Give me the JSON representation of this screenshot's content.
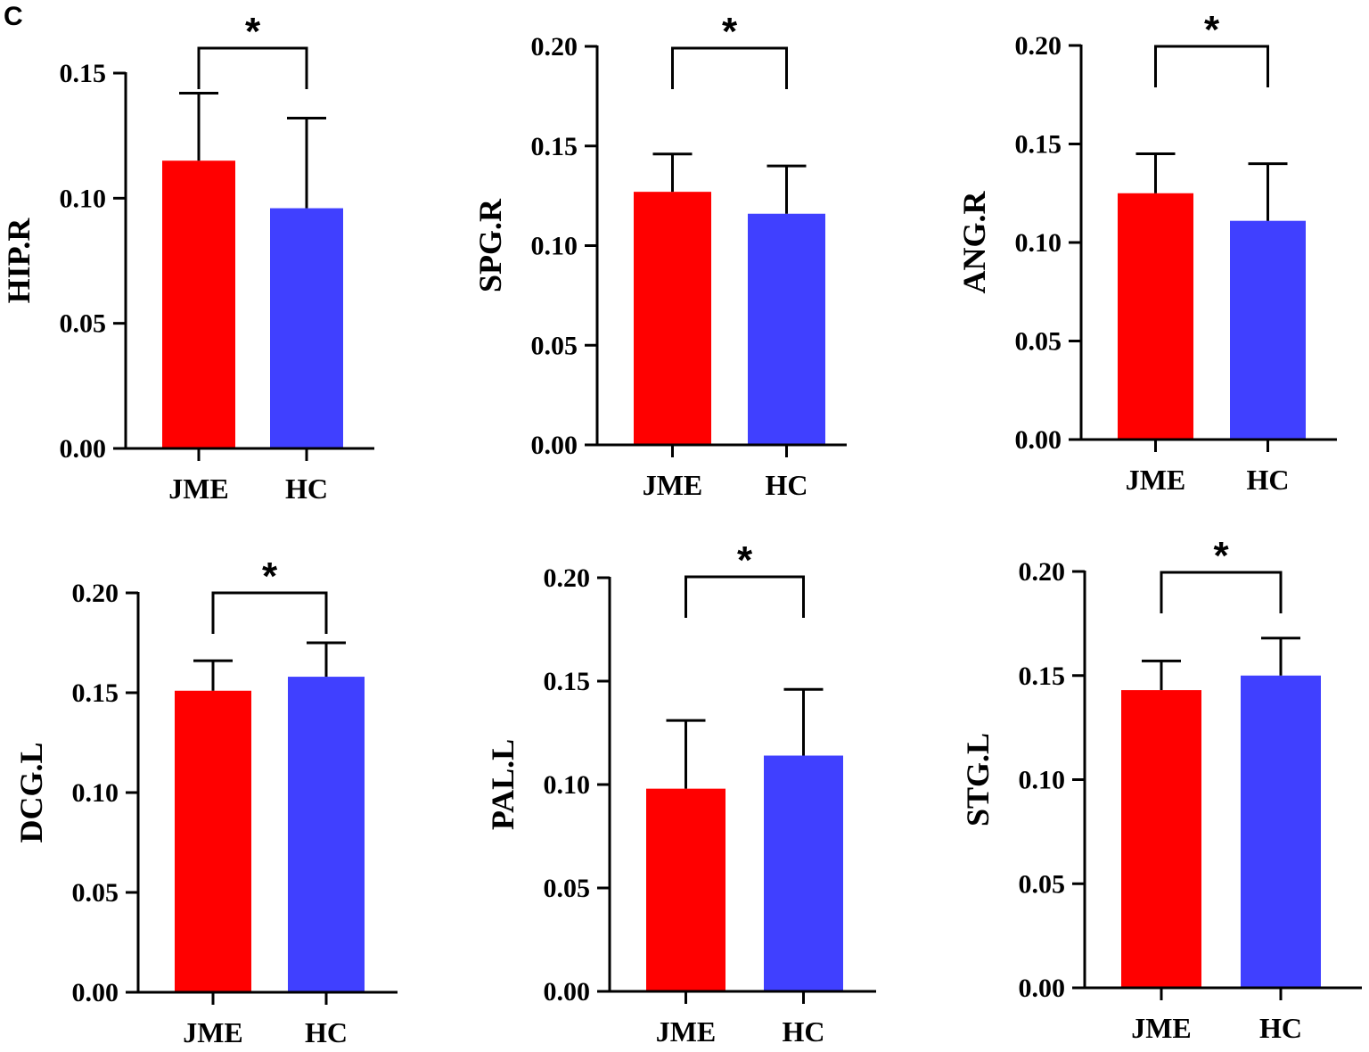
{
  "panel_label": "C",
  "colors": {
    "jme": "#ff0000",
    "hc": "#4040ff",
    "axis": "#000000"
  },
  "chart_data": [
    {
      "type": "bar",
      "ylabel": "HIP.R",
      "categories": [
        "JME",
        "HC"
      ],
      "values": [
        0.115,
        0.096
      ],
      "errors": [
        0.027,
        0.036
      ],
      "ylim": [
        0,
        0.15
      ],
      "yticks": [
        "0.00",
        "0.05",
        "0.10",
        "0.15"
      ],
      "annotation": "*"
    },
    {
      "type": "bar",
      "ylabel": "SPG.R",
      "categories": [
        "JME",
        "HC"
      ],
      "values": [
        0.127,
        0.116
      ],
      "errors": [
        0.019,
        0.024
      ],
      "ylim": [
        0,
        0.2
      ],
      "yticks": [
        "0.00",
        "0.05",
        "0.10",
        "0.15",
        "0.20"
      ],
      "annotation": "*"
    },
    {
      "type": "bar",
      "ylabel": "ANG.R",
      "categories": [
        "JME",
        "HC"
      ],
      "values": [
        0.125,
        0.111
      ],
      "errors": [
        0.02,
        0.029
      ],
      "ylim": [
        0,
        0.2
      ],
      "yticks": [
        "0.00",
        "0.05",
        "0.10",
        "0.15",
        "0.20"
      ],
      "annotation": "*"
    },
    {
      "type": "bar",
      "ylabel": "DCG.L",
      "categories": [
        "JME",
        "HC"
      ],
      "values": [
        0.151,
        0.158
      ],
      "errors": [
        0.015,
        0.017
      ],
      "ylim": [
        0,
        0.2
      ],
      "yticks": [
        "0.00",
        "0.05",
        "0.10",
        "0.15",
        "0.20"
      ],
      "annotation": "*"
    },
    {
      "type": "bar",
      "ylabel": "PAL.L",
      "categories": [
        "JME",
        "HC"
      ],
      "values": [
        0.098,
        0.114
      ],
      "errors": [
        0.033,
        0.032
      ],
      "ylim": [
        0,
        0.2
      ],
      "yticks": [
        "0.00",
        "0.05",
        "0.10",
        "0.15",
        "0.20"
      ],
      "annotation": "*"
    },
    {
      "type": "bar",
      "ylabel": "STG.L",
      "categories": [
        "JME",
        "HC"
      ],
      "values": [
        0.143,
        0.15
      ],
      "errors": [
        0.014,
        0.018
      ],
      "ylim": [
        0,
        0.2
      ],
      "yticks": [
        "0.00",
        "0.05",
        "0.10",
        "0.15",
        "0.20"
      ],
      "annotation": "*"
    }
  ]
}
